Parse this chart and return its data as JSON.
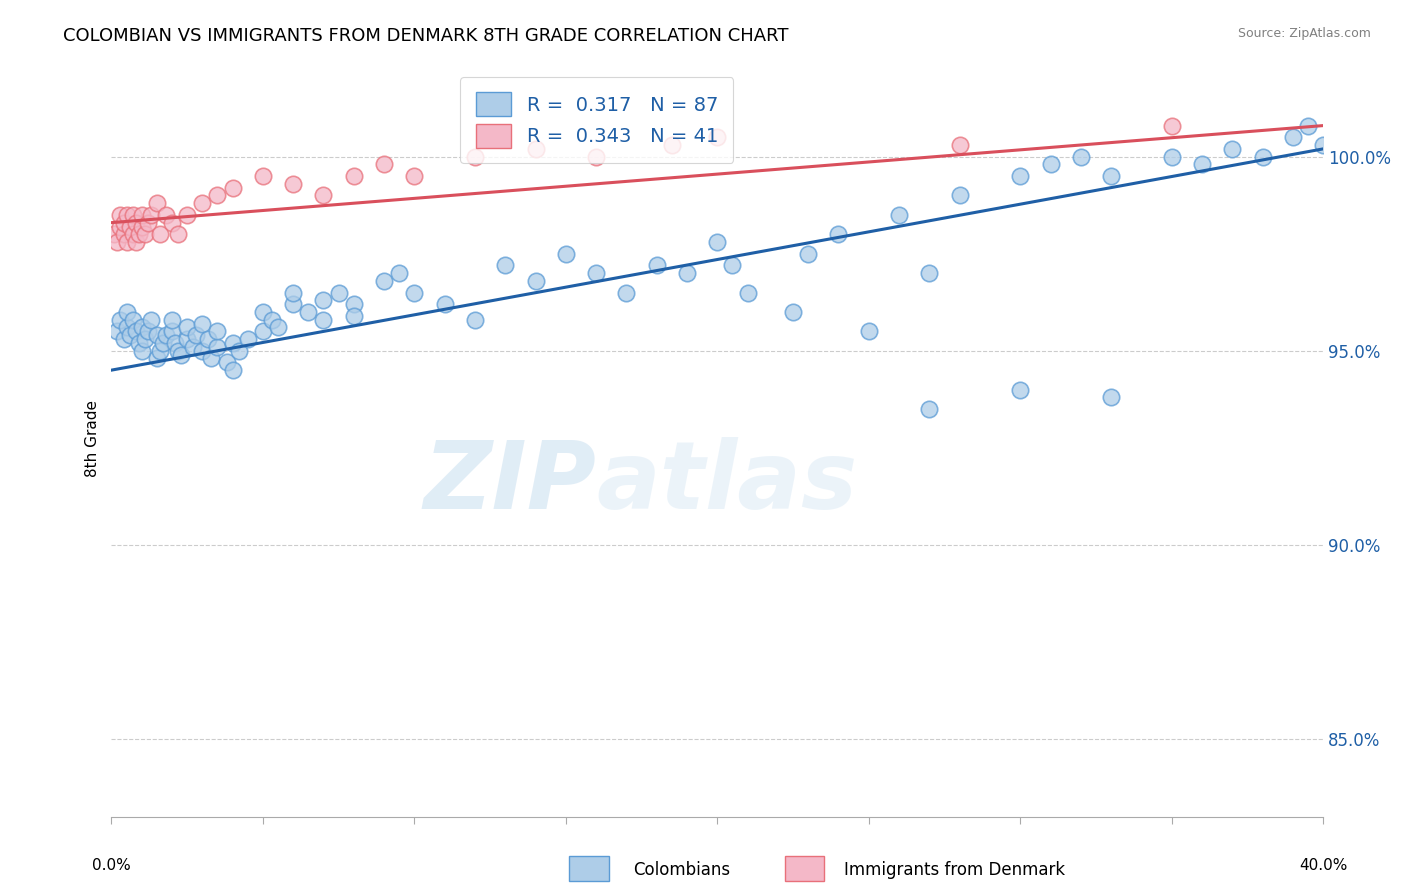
{
  "title": "COLOMBIAN VS IMMIGRANTS FROM DENMARK 8TH GRADE CORRELATION CHART",
  "source": "Source: ZipAtlas.com",
  "ylabel": "8th Grade",
  "xlim": [
    0.0,
    40.0
  ],
  "ylim": [
    83.0,
    102.5
  ],
  "yticks": [
    85.0,
    90.0,
    95.0,
    100.0
  ],
  "ytick_labels": [
    "85.0%",
    "90.0%",
    "95.0%",
    "100.0%"
  ],
  "legend_blue_r": "0.317",
  "legend_blue_n": "87",
  "legend_pink_r": "0.343",
  "legend_pink_n": "41",
  "blue_color": "#aecde8",
  "pink_color": "#f4b8c8",
  "blue_edge_color": "#5b9bd5",
  "pink_edge_color": "#e8707a",
  "blue_line_color": "#1f5fa6",
  "pink_line_color": "#d94f5c",
  "watermark_zip": "ZIP",
  "watermark_atlas": "atlas",
  "blue_trend_y0": 94.5,
  "blue_trend_y1": 100.2,
  "pink_trend_y0": 98.3,
  "pink_trend_y1": 100.8,
  "blue_scatter_x": [
    0.2,
    0.3,
    0.4,
    0.5,
    0.5,
    0.6,
    0.7,
    0.8,
    0.9,
    1.0,
    1.0,
    1.1,
    1.2,
    1.3,
    1.5,
    1.5,
    1.6,
    1.7,
    1.8,
    2.0,
    2.0,
    2.1,
    2.2,
    2.3,
    2.5,
    2.5,
    2.7,
    2.8,
    3.0,
    3.0,
    3.2,
    3.3,
    3.5,
    3.5,
    3.8,
    4.0,
    4.0,
    4.2,
    4.5,
    5.0,
    5.0,
    5.3,
    5.5,
    6.0,
    6.0,
    6.5,
    7.0,
    7.0,
    7.5,
    8.0,
    8.0,
    9.0,
    9.5,
    10.0,
    11.0,
    12.0,
    13.0,
    14.0,
    15.0,
    16.0,
    17.0,
    18.0,
    19.0,
    20.0,
    20.5,
    21.0,
    22.5,
    23.0,
    24.0,
    25.0,
    26.0,
    27.0,
    28.0,
    30.0,
    31.0,
    32.0,
    33.0,
    35.0,
    36.0,
    37.0,
    38.0,
    39.0,
    39.5,
    40.0,
    27.0,
    30.0,
    33.0
  ],
  "blue_scatter_y": [
    95.5,
    95.8,
    95.3,
    95.6,
    96.0,
    95.4,
    95.8,
    95.5,
    95.2,
    95.0,
    95.6,
    95.3,
    95.5,
    95.8,
    95.4,
    94.8,
    95.0,
    95.2,
    95.4,
    95.5,
    95.8,
    95.2,
    95.0,
    94.9,
    95.3,
    95.6,
    95.1,
    95.4,
    95.7,
    95.0,
    95.3,
    94.8,
    95.1,
    95.5,
    94.7,
    95.2,
    94.5,
    95.0,
    95.3,
    95.5,
    96.0,
    95.8,
    95.6,
    96.2,
    96.5,
    96.0,
    96.3,
    95.8,
    96.5,
    96.2,
    95.9,
    96.8,
    97.0,
    96.5,
    96.2,
    95.8,
    97.2,
    96.8,
    97.5,
    97.0,
    96.5,
    97.2,
    97.0,
    97.8,
    97.2,
    96.5,
    96.0,
    97.5,
    98.0,
    95.5,
    98.5,
    97.0,
    99.0,
    99.5,
    99.8,
    100.0,
    99.5,
    100.0,
    99.8,
    100.2,
    100.0,
    100.5,
    100.8,
    100.3,
    93.5,
    94.0,
    93.8
  ],
  "pink_scatter_x": [
    0.1,
    0.2,
    0.3,
    0.3,
    0.4,
    0.4,
    0.5,
    0.5,
    0.6,
    0.7,
    0.7,
    0.8,
    0.8,
    0.9,
    1.0,
    1.0,
    1.1,
    1.2,
    1.3,
    1.5,
    1.6,
    1.8,
    2.0,
    2.2,
    2.5,
    3.0,
    3.5,
    4.0,
    5.0,
    6.0,
    7.0,
    8.0,
    9.0,
    10.0,
    12.0,
    14.0,
    16.0,
    18.5,
    20.0,
    28.0,
    35.0
  ],
  "pink_scatter_y": [
    98.0,
    97.8,
    98.2,
    98.5,
    98.0,
    98.3,
    97.8,
    98.5,
    98.2,
    98.0,
    98.5,
    97.8,
    98.3,
    98.0,
    98.2,
    98.5,
    98.0,
    98.3,
    98.5,
    98.8,
    98.0,
    98.5,
    98.3,
    98.0,
    98.5,
    98.8,
    99.0,
    99.2,
    99.5,
    99.3,
    99.0,
    99.5,
    99.8,
    99.5,
    100.0,
    100.2,
    100.0,
    100.3,
    100.5,
    100.3,
    100.8
  ]
}
